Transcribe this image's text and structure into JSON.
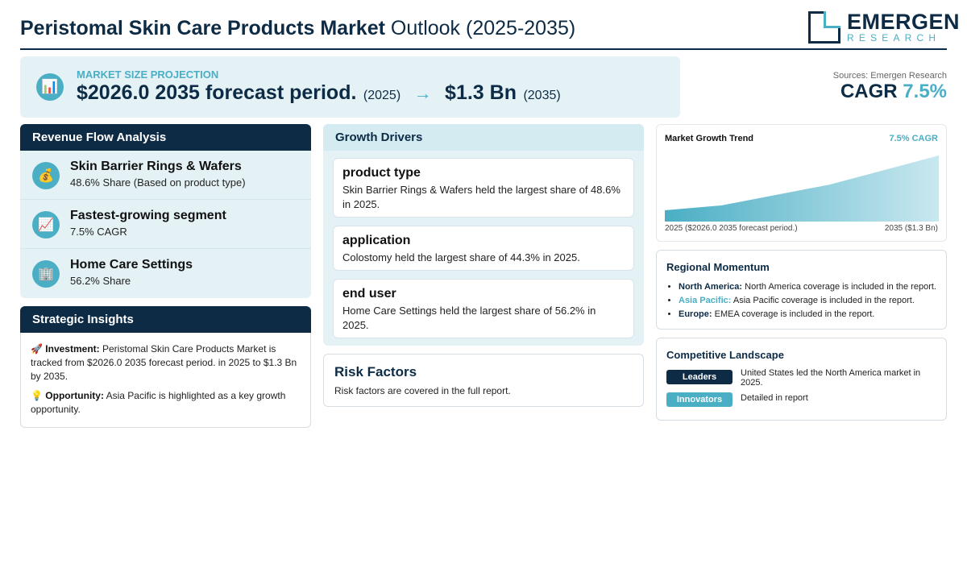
{
  "header": {
    "title_strong": "Peristomal Skin Care Products Market",
    "title_rest": " Outlook (2025-2035)",
    "logo_name": "EMERGEN",
    "logo_sub": "RESEARCH"
  },
  "projection": {
    "label": "MARKET SIZE PROJECTION",
    "start_value": "$2026.0 2035 forecast period.",
    "start_year": "(2025)",
    "arrow": "→",
    "end_value": "$1.3 Bn",
    "end_year": "(2035)"
  },
  "sources": {
    "text": "Sources: Emergen Research",
    "cagr_label": "CAGR",
    "cagr_value": "7.5%"
  },
  "revenue_flow": {
    "title": "Revenue Flow Analysis",
    "items": [
      {
        "icon": "money-bag-icon",
        "glyph": "💰",
        "title": "Skin Barrier Rings & Wafers",
        "subtitle": "48.6% Share (Based on product type)"
      },
      {
        "icon": "chart-up-icon",
        "glyph": "📈",
        "title": "Fastest-growing segment",
        "subtitle": "7.5% CAGR"
      },
      {
        "icon": "building-icon",
        "glyph": "🏢",
        "title": "Home Care Settings",
        "subtitle": "56.2% Share"
      }
    ]
  },
  "strategic_insights": {
    "title": "Strategic Insights",
    "investment_label": "Investment:",
    "investment_text": "Peristomal Skin Care Products Market is tracked from $2026.0 2035 forecast period. in 2025 to $1.3 Bn by 2035.",
    "opportunity_label": "Opportunity:",
    "opportunity_text": "Asia Pacific is highlighted as a key growth opportunity."
  },
  "growth_drivers": {
    "title": "Growth Drivers",
    "items": [
      {
        "title": "product type",
        "text": "Skin Barrier Rings & Wafers held the largest share of 48.6% in 2025."
      },
      {
        "title": "application",
        "text": "Colostomy held the largest share of 44.3% in 2025."
      },
      {
        "title": "end user",
        "text": "Home Care Settings held the largest share of 56.2% in 2025."
      }
    ]
  },
  "risk_factors": {
    "title": "Risk Factors",
    "text": "Risk factors are covered in the full report."
  },
  "trend": {
    "title": "Market Growth Trend",
    "cagr": "7.5% CAGR",
    "left_label": "2025 ($2026.0 2035 forecast period.)",
    "right_label": "2035 ($1.3 Bn)"
  },
  "regional": {
    "title": "Regional Momentum",
    "items": [
      {
        "name": "North America:",
        "text": "North America coverage is included in the report."
      },
      {
        "name": "Asia Pacific:",
        "text": "Asia Pacific coverage is included in the report."
      },
      {
        "name": "Europe:",
        "text": "EMEA coverage is included in the report."
      }
    ]
  },
  "competitive": {
    "title": "Competitive Landscape",
    "rows": [
      {
        "badge": "Leaders",
        "text": "United States led the North America market in 2025."
      },
      {
        "badge": "Innovators",
        "text": "Detailed in report"
      }
    ]
  },
  "colors": {
    "navy": "#0d2b45",
    "accent": "#4aaec4",
    "panel_bg": "#e4f2f6"
  }
}
